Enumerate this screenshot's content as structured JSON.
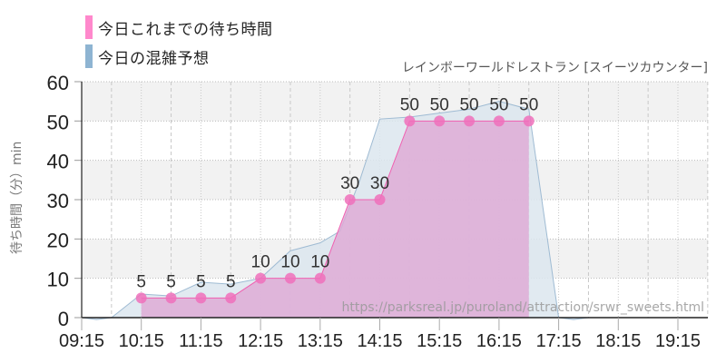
{
  "legend": [
    {
      "label": "今日これまでの待ち時間",
      "color": "#ff88cc"
    },
    {
      "label": "今日の混雑予想",
      "color": "#8eb4d2"
    }
  ],
  "subtitle": "レインボーワールドレストラン [スイーツカウンター]",
  "ylabel": "待ち時間（分）min",
  "watermark": "https://parksreal.jp/puroland/attraction/srwr_sweets.html",
  "colors": {
    "actual_fill": "#dfa8d4",
    "actual_line": "#f060b0",
    "actual_marker": "#f070bb",
    "forecast_fill": "#dce6ee",
    "forecast_line": "#9fbbd3",
    "band": "#f2f2f2",
    "axis": "#222222"
  },
  "chart_data": {
    "type": "area",
    "title": "レインボーワールドレストラン [スイーツカウンター]",
    "xlabel": "",
    "ylabel": "待ち時間（分）min",
    "ylim": [
      0,
      60
    ],
    "yticks": [
      0,
      10,
      20,
      30,
      40,
      50,
      60
    ],
    "xticks": [
      "09:15",
      "10:15",
      "11:15",
      "12:15",
      "13:15",
      "14:15",
      "15:15",
      "16:15",
      "17:15",
      "18:15",
      "19:15"
    ],
    "xrange": [
      "09:15",
      "19:45"
    ],
    "grid": true,
    "legend_position": "top-left",
    "series": [
      {
        "name": "今日これまでの待ち時間",
        "type": "area",
        "points": [
          {
            "x": "10:15",
            "y": 5
          },
          {
            "x": "10:45",
            "y": 5
          },
          {
            "x": "11:15",
            "y": 5
          },
          {
            "x": "11:45",
            "y": 5
          },
          {
            "x": "12:15",
            "y": 10
          },
          {
            "x": "12:45",
            "y": 10
          },
          {
            "x": "13:15",
            "y": 10
          },
          {
            "x": "13:45",
            "y": 30
          },
          {
            "x": "14:15",
            "y": 30
          },
          {
            "x": "14:45",
            "y": 50
          },
          {
            "x": "15:15",
            "y": 50
          },
          {
            "x": "15:45",
            "y": 50
          },
          {
            "x": "16:15",
            "y": 50
          },
          {
            "x": "16:45",
            "y": 50
          }
        ]
      },
      {
        "name": "今日の混雑予想",
        "type": "area",
        "points": [
          {
            "x": "09:15",
            "y": 0
          },
          {
            "x": "09:30",
            "y": -0.5
          },
          {
            "x": "09:45",
            "y": 0
          },
          {
            "x": "10:15",
            "y": 6
          },
          {
            "x": "10:45",
            "y": 5.5
          },
          {
            "x": "11:15",
            "y": 9
          },
          {
            "x": "11:45",
            "y": 8.5
          },
          {
            "x": "12:15",
            "y": 10
          },
          {
            "x": "12:45",
            "y": 17
          },
          {
            "x": "13:15",
            "y": 19
          },
          {
            "x": "13:35",
            "y": 22
          },
          {
            "x": "13:55",
            "y": 35
          },
          {
            "x": "14:15",
            "y": 50.5
          },
          {
            "x": "14:45",
            "y": 51
          },
          {
            "x": "15:15",
            "y": 52
          },
          {
            "x": "15:45",
            "y": 53
          },
          {
            "x": "16:15",
            "y": 55
          },
          {
            "x": "16:45",
            "y": 53
          },
          {
            "x": "17:15",
            "y": 0
          },
          {
            "x": "17:30",
            "y": -0.5
          },
          {
            "x": "17:45",
            "y": 0
          },
          {
            "x": "19:45",
            "y": 0
          }
        ]
      }
    ]
  }
}
